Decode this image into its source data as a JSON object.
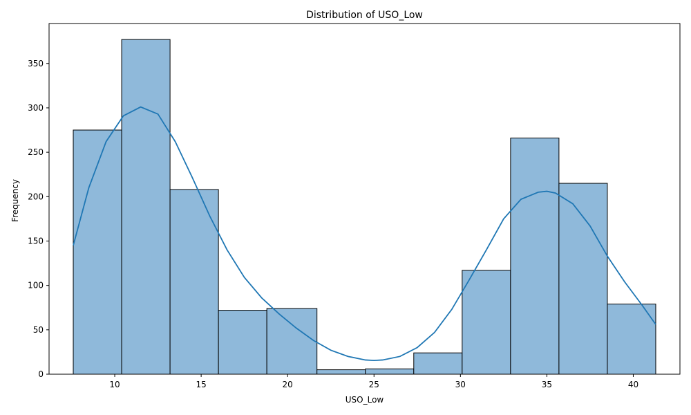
{
  "chart_data": {
    "type": "bar",
    "title": "Distribution of USO_Low",
    "xlabel": "USO_Low",
    "ylabel": "Frequency",
    "xlim": [
      6.2,
      42.7
    ],
    "ylim": [
      0,
      395
    ],
    "xticks": [
      10,
      15,
      20,
      25,
      30,
      35,
      40
    ],
    "yticks": [
      0,
      50,
      100,
      150,
      200,
      250,
      300,
      350
    ],
    "bins": [
      {
        "x0": 7.6,
        "x1": 10.4,
        "count": 275
      },
      {
        "x0": 10.4,
        "x1": 13.2,
        "count": 377
      },
      {
        "x0": 13.2,
        "x1": 16.0,
        "count": 208
      },
      {
        "x0": 16.0,
        "x1": 18.8,
        "count": 72
      },
      {
        "x0": 18.8,
        "x1": 21.7,
        "count": 74
      },
      {
        "x0": 21.7,
        "x1": 24.5,
        "count": 5
      },
      {
        "x0": 24.5,
        "x1": 27.3,
        "count": 6
      },
      {
        "x0": 27.3,
        "x1": 30.1,
        "count": 24
      },
      {
        "x0": 30.1,
        "x1": 32.9,
        "count": 117
      },
      {
        "x0": 32.9,
        "x1": 35.7,
        "count": 266
      },
      {
        "x0": 35.7,
        "x1": 38.5,
        "count": 215
      },
      {
        "x0": 38.5,
        "x1": 41.3,
        "count": 79
      }
    ],
    "kde": {
      "x": [
        7.6,
        8.5,
        9.5,
        10.5,
        11.5,
        12.5,
        13.5,
        14.5,
        15.5,
        16.5,
        17.5,
        18.5,
        19.5,
        20.5,
        21.5,
        22.5,
        23.5,
        24.5,
        25.0,
        25.5,
        26.5,
        27.5,
        28.5,
        29.5,
        30.5,
        31.5,
        32.5,
        33.5,
        34.5,
        35.0,
        35.5,
        36.5,
        37.5,
        38.5,
        39.5,
        40.5,
        41.3
      ],
      "y": [
        145,
        210,
        262,
        291,
        301,
        293,
        262,
        221,
        178,
        140,
        109,
        86,
        68,
        52,
        38,
        27,
        20,
        16,
        15.5,
        16,
        20,
        30,
        47,
        73,
        106,
        140,
        175,
        197,
        205,
        206,
        204,
        192,
        167,
        133,
        104,
        78,
        56
      ]
    },
    "bar_fill": "#8fb9da",
    "bar_edge": "#000000",
    "kde_color": "#1f77b4",
    "grid": false,
    "legend": "none"
  }
}
